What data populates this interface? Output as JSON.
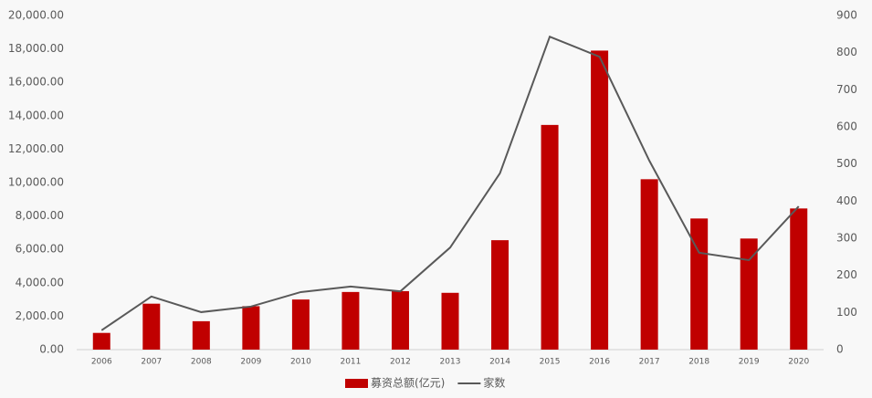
{
  "chart_data": {
    "type": "bar_line",
    "categories": [
      "2006",
      "2007",
      "2008",
      "2009",
      "2010",
      "2011",
      "2012",
      "2013",
      "2014",
      "2015",
      "2016",
      "2017",
      "2018",
      "2019",
      "2020"
    ],
    "series": [
      {
        "name": "募资总额(亿元)",
        "type": "bar",
        "color": "#c00000",
        "values": [
          1000,
          2750,
          1700,
          2600,
          3000,
          3450,
          3500,
          3400,
          6550,
          13450,
          17900,
          10200,
          7850,
          6650,
          8450
        ]
      },
      {
        "name": "家数",
        "type": "line",
        "axis": "y2",
        "color": "#595959",
        "values": [
          52,
          143,
          101,
          116,
          155,
          170,
          157,
          275,
          475,
          843,
          789,
          509,
          261,
          241,
          386
        ]
      }
    ],
    "ylim": [
      0,
      20000
    ],
    "yticks": [
      {
        "value": 0,
        "label": "0.00"
      },
      {
        "value": 2000,
        "label": "2,000.00"
      },
      {
        "value": 4000,
        "label": "4,000.00"
      },
      {
        "value": 6000,
        "label": "6,000.00"
      },
      {
        "value": 8000,
        "label": "8,000.00"
      },
      {
        "value": 10000,
        "label": "10,000.00"
      },
      {
        "value": 12000,
        "label": "12,000.00"
      },
      {
        "value": 14000,
        "label": "14,000.00"
      },
      {
        "value": 16000,
        "label": "16,000.00"
      },
      {
        "value": 18000,
        "label": "18,000.00"
      },
      {
        "value": 20000,
        "label": "20,000.00"
      }
    ],
    "y2lim": [
      0,
      900
    ],
    "y2ticks": [
      0,
      100,
      200,
      300,
      400,
      500,
      600,
      700,
      800,
      900
    ],
    "legend": "bottom"
  }
}
